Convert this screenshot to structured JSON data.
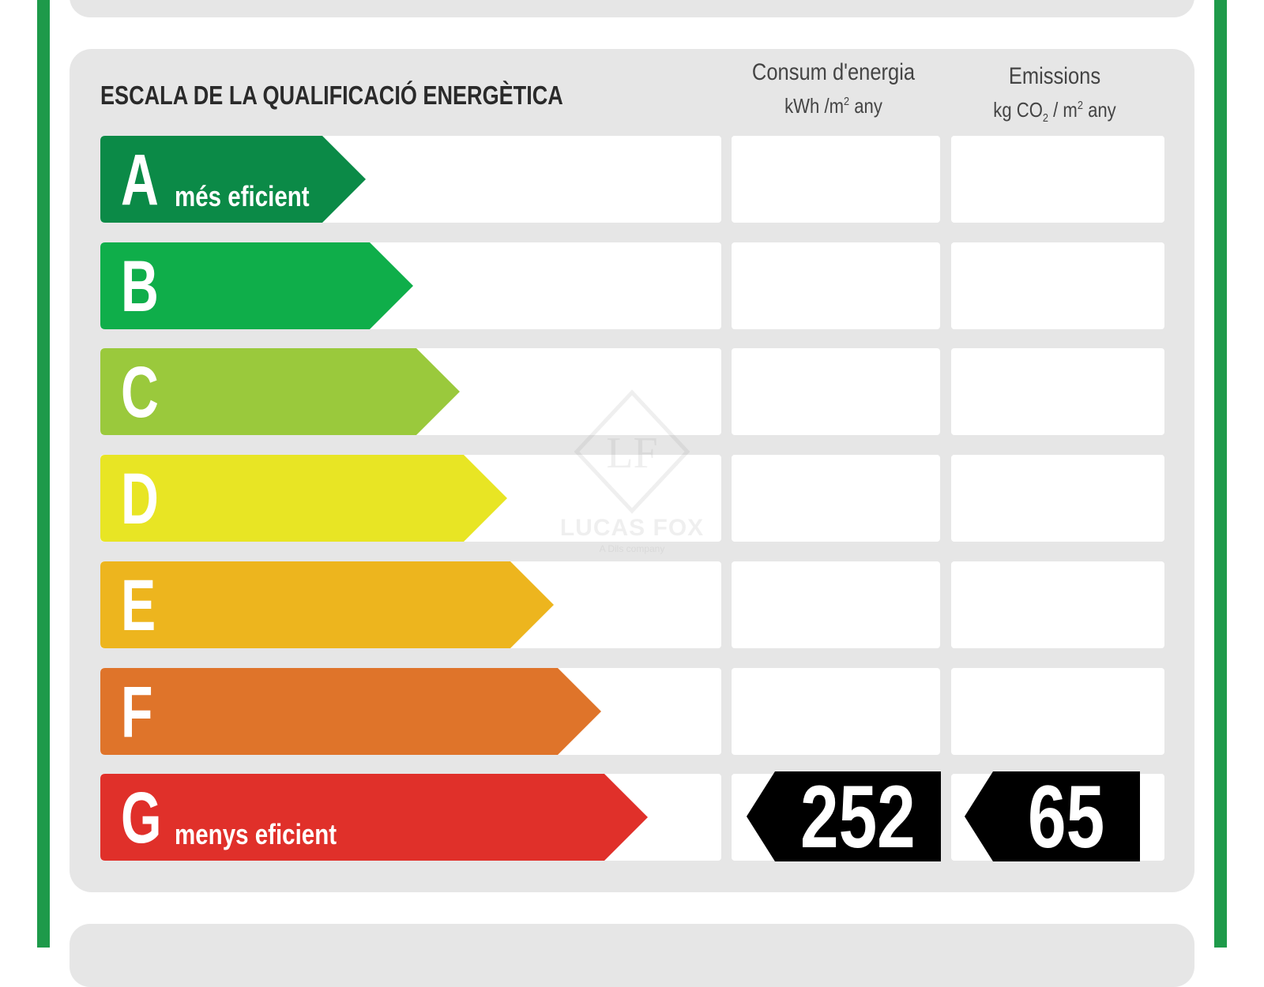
{
  "title": "ESCALA DE LA QUALIFICACIÓ ENERGÈTICA",
  "columns": {
    "energy": {
      "label": "Consum d'energia",
      "unit_pre": "kWh /m",
      "unit_sup": "2",
      "unit_post": " any"
    },
    "emissions": {
      "label": "Emissions",
      "unit_pre": "kg CO",
      "unit_sub": "2",
      "unit_mid": " / m",
      "unit_sup": "2",
      "unit_post": " any"
    }
  },
  "ratings": [
    {
      "letter": "A",
      "caption": "més eficient",
      "color": "#0b8a47"
    },
    {
      "letter": "B",
      "caption": "",
      "color": "#0fae4a"
    },
    {
      "letter": "C",
      "caption": "",
      "color": "#9ac93c"
    },
    {
      "letter": "D",
      "caption": "",
      "color": "#e8e524"
    },
    {
      "letter": "E",
      "caption": "",
      "color": "#edb51e"
    },
    {
      "letter": "F",
      "caption": "",
      "color": "#df742a"
    },
    {
      "letter": "G",
      "caption": "menys eficient",
      "color": "#e0302a"
    }
  ],
  "current": {
    "rating": "G",
    "energy_value": "252",
    "emissions_value": "65"
  },
  "watermark": {
    "brand": "LUCAS FOX",
    "sub": "A Dils company",
    "monogram": "LF"
  },
  "colors": {
    "border": "#1e9a4a",
    "panel": "#e6e6e6",
    "tag": "#000000"
  }
}
